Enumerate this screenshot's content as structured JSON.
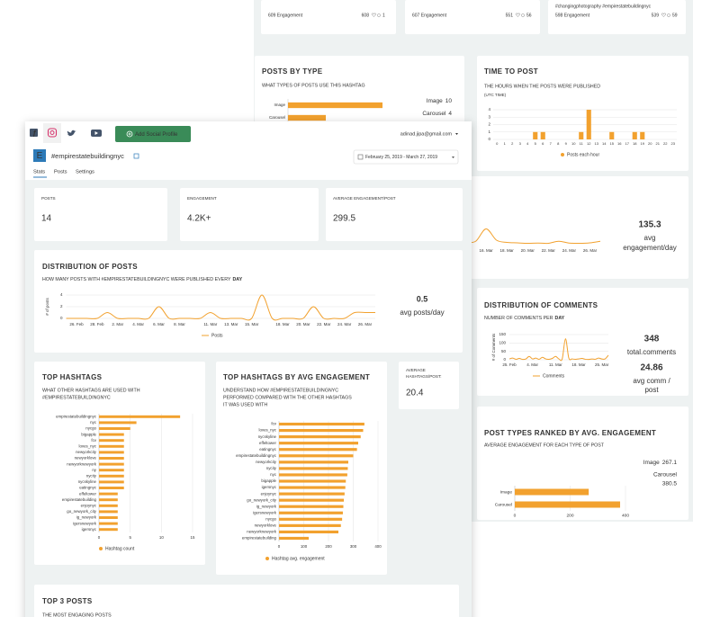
{
  "back": {
    "top_posts": [
      {
        "engagement": "609 Engagement",
        "likes": 608,
        "comments": 1
      },
      {
        "engagement": "607 Engagement",
        "likes": 551,
        "comments": 56
      },
      {
        "caption": "#changingphotography #empirestatebuildingnyc",
        "engagement": "598 Engagement",
        "likes": 539,
        "comments": 59
      }
    ],
    "posts_by_type": {
      "title": "POSTS BY TYPE",
      "subtitle": "WHAT TYPES OF POSTS USE THIS HASHTAG",
      "chart": {
        "type": "hbar",
        "categories": [
          "Image",
          "Carousel"
        ],
        "values": [
          10,
          4
        ],
        "xlim": [
          0,
          10
        ],
        "color": "#f2a12e"
      }
    },
    "time_to_post": {
      "title": "TIME TO POST",
      "subtitle": "THE HOURS WHEN THE POSTS WERE PUBLISHED",
      "note": "(UTC TIME)",
      "chart": {
        "type": "bar",
        "categories": [
          "0",
          "1",
          "2",
          "3",
          "4",
          "5",
          "6",
          "7",
          "8",
          "9",
          "10",
          "11",
          "12",
          "13",
          "14",
          "15",
          "16",
          "17",
          "18",
          "19",
          "20",
          "21",
          "22",
          "23"
        ],
        "values": [
          0,
          0,
          0,
          0,
          0,
          1,
          1,
          0,
          0,
          0,
          0,
          1,
          4,
          0,
          0,
          1,
          0,
          0,
          1,
          1,
          0,
          0,
          0,
          0
        ],
        "ylim": [
          0,
          4
        ],
        "yticks": [
          0,
          1,
          2,
          3,
          4
        ],
        "legend": "Posts each hour",
        "color": "#f2a12e"
      }
    },
    "engagement": {
      "chart": {
        "type": "line",
        "categories": [
          null,
          null,
          "16. Mar",
          null,
          "18. Mar",
          null,
          "20. Mar",
          null,
          "22. Mar",
          null,
          "24. Mar",
          null,
          "26. Mar",
          null
        ],
        "values": [
          100,
          150,
          700,
          200,
          100,
          80,
          60,
          70,
          60,
          150,
          70,
          60,
          80,
          150
        ],
        "ylim": [
          0,
          1200
        ],
        "color": "#f2a12e"
      },
      "avg": 135.3,
      "avg_label_lines": [
        "avg",
        "engagement/day"
      ]
    },
    "comments": {
      "title": "DISTRIBUTION OF COMMENTS",
      "subtitle": "NUMBER OF COMMENTS PER",
      "subtitle_bold": "DAY",
      "chart": {
        "type": "line",
        "y_label": "# of Comments",
        "categories": [
          "25. Feb",
          null,
          null,
          null,
          null,
          null,
          null,
          "4. Mar",
          null,
          null,
          null,
          null,
          null,
          null,
          "11. Mar",
          null,
          null,
          null,
          null,
          null,
          null,
          "18. Mar",
          null,
          null,
          null,
          null,
          null,
          null,
          "25. Mar",
          null,
          null
        ],
        "values": [
          5,
          10,
          3,
          8,
          2,
          5,
          20,
          5,
          10,
          3,
          15,
          5,
          3,
          8,
          20,
          5,
          5,
          125,
          10,
          5,
          3,
          5,
          8,
          3,
          2,
          5,
          3,
          10,
          5,
          5,
          27
        ],
        "ylim": [
          0,
          150
        ],
        "yticks": [
          0,
          50,
          100,
          150
        ],
        "legend": "Comments",
        "color": "#f2a12e"
      },
      "total": 348,
      "total_label": "total.comments",
      "avg": 24.86,
      "avg_label_lines": [
        "avg comm /",
        "post"
      ]
    },
    "post_types_ranked": {
      "title": "POST TYPES RANKED BY AVG. ENGAGEMENT",
      "subtitle": "AVERAGE ENGAGEMENT FOR EACH TYPE OF POST",
      "chart": {
        "type": "hbar",
        "categories": [
          "Image",
          "Carousel"
        ],
        "values": [
          267.1,
          380.5
        ],
        "xlim": [
          0,
          400
        ],
        "xticks": [
          0,
          200,
          400
        ],
        "color": "#f2a12e"
      }
    }
  },
  "front": {
    "nav": {
      "add_profile": "Add Social Profile",
      "email": "adinad.jipa@gmail.com"
    },
    "profile": {
      "initial": "E",
      "name": "#empirestatebuildingnyc",
      "tabs": [
        "Stats",
        "Posts",
        "Settings"
      ],
      "date_range": "February 25, 2019 - March 27, 2019"
    },
    "stats": [
      {
        "label": "POSTS",
        "value": 14
      },
      {
        "label": "ENGAGEMENT",
        "value": "4.2K+"
      },
      {
        "label": "AVERAGE ENGAGEMENT/POST",
        "value": 299.5
      }
    ],
    "distribution": {
      "title": "DISTRIBUTION OF POSTS",
      "subtitle": "HOW MANY POSTS WITH #EMPIRESTATEBUILDINGNYC WERE PUBLISHED EVERY",
      "subtitle_bold": "DAY",
      "chart": {
        "type": "line",
        "y_label": "# of posts",
        "categories": [
          null,
          "26. Feb",
          null,
          "28. Feb",
          null,
          "2. Mar",
          null,
          "4. Mar",
          null,
          "6. Mar",
          null,
          "8. Mar",
          null,
          null,
          "11. Mar",
          null,
          "13. Mar",
          null,
          "15. Mar",
          null,
          null,
          "18. Mar",
          null,
          "20. Mar",
          null,
          "22. Mar",
          null,
          "24. Mar",
          null,
          "26. Mar",
          null
        ],
        "values": [
          0,
          0,
          0,
          0,
          1,
          0,
          0,
          0,
          0,
          2,
          0,
          0,
          0,
          0,
          1,
          0,
          0,
          0,
          0,
          4,
          0,
          0,
          0,
          0,
          2,
          0,
          0,
          0,
          1,
          1,
          1
        ],
        "ylim": [
          0,
          4
        ],
        "yticks": [
          0,
          2,
          4
        ],
        "legend": "Posts",
        "color": "#f2a12e"
      },
      "avg": 0.5,
      "avg_label": "avg posts/day"
    },
    "top_hashtags": {
      "title": "TOP HASHTAGS",
      "subtitle_lines": [
        "WHAT OTHER HASHTAGS ARE USED WITH",
        "#EMPIRESTATEBUILDINGNYC"
      ],
      "chart": {
        "type": "hbar",
        "categories": [
          "empirestatebuildingnyc",
          "nyc",
          "nycgo",
          "bigapple",
          "fcv",
          "loves_nyc",
          "newyorkcity",
          "newyorklove",
          "newyorknewyork",
          "ny",
          "nycity",
          "nycskyline",
          "eatingnyc",
          "effeltower",
          "empirestatebuilding",
          "enjoynyc",
          "go_newyork_city",
          "ig_newyork",
          "igersnewyork",
          "igersnyc"
        ],
        "values": [
          13,
          6,
          5,
          4,
          4,
          4,
          4,
          4,
          4,
          4,
          4,
          4,
          4,
          3,
          3,
          3,
          3,
          3,
          3,
          3
        ],
        "xlim": [
          0,
          15
        ],
        "xticks": [
          0,
          5,
          10,
          15
        ],
        "legend": "Hashtag count",
        "color": "#f2a12e"
      }
    },
    "top_hashtags_engagement": {
      "title": "TOP HASHTAGS BY AVG ENGAGEMENT",
      "subtitle_lines": [
        "UNDERSTAND HOW #EMPIRESTATEBUILDINGNYC",
        "PERFORMED COMPARED WITH THE OTHER HASHTAGS",
        "IT WAS USED WITH"
      ],
      "chart": {
        "type": "hbar",
        "categories": [
          "fcv",
          "loves_nyc",
          "nycskyline",
          "effeltower",
          "eatingnyc",
          "empirestatebuildingnyc",
          "newyorkcity",
          "nycity",
          "nyc",
          "bigapple",
          "igersnyc",
          "enjoynyc",
          "go_newyork_city",
          "ig_newyork",
          "igersnewyork",
          "nycgo",
          "newyorklove",
          "newyorknewyork",
          "empirestatebuilding"
        ],
        "values": [
          345,
          340,
          330,
          320,
          315,
          300,
          280,
          278,
          276,
          270,
          268,
          265,
          262,
          260,
          258,
          255,
          250,
          240,
          120
        ],
        "xlim": [
          0,
          400
        ],
        "xticks": [
          0,
          100,
          200,
          300,
          400
        ],
        "legend": "Hashtag avg. engagement",
        "color": "#f2a12e"
      }
    },
    "avg_hashtags": {
      "label_lines": [
        "AVERAGE",
        "HASHTAGS/POST:"
      ],
      "value": 20.4
    },
    "top3": {
      "title": "TOP 3 POSTS",
      "subtitle": "THE MOST ENGAGING POSTS"
    }
  }
}
